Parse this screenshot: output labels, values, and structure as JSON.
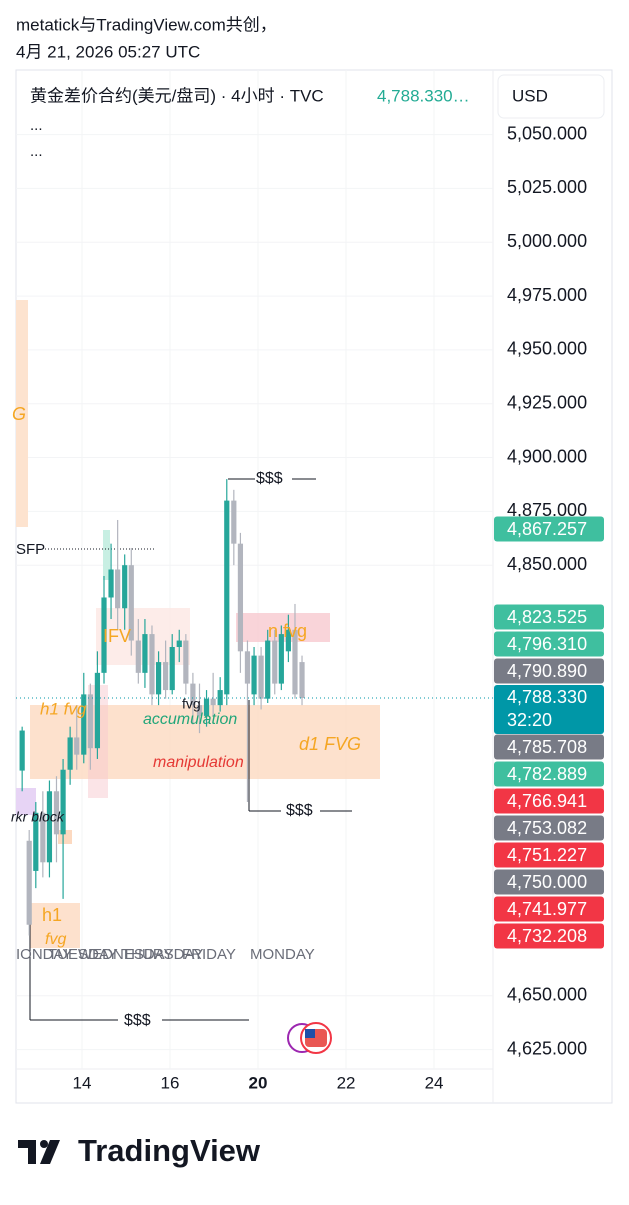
{
  "header": {
    "line1": "metatick与TradingView.com共创，",
    "line2": "4月 21, 2026 05:27 UTC"
  },
  "chart_data": {
    "type": "candlestick",
    "title": "黄金差价合约(美元/盘司) · 4小时 · TVC",
    "legend_value": "4,788.330…",
    "legend_rows": [
      "...",
      "..."
    ],
    "currency": "USD",
    "up_color": "#26a69a",
    "down_color": "#b2b5be",
    "x": [
      12.64,
      12.8,
      12.95,
      13.11,
      13.26,
      13.42,
      13.57,
      13.73,
      13.88,
      14.04,
      14.19,
      14.35,
      14.5,
      14.66,
      14.81,
      14.97,
      15.12,
      15.28,
      15.43,
      15.59,
      15.74,
      15.9,
      16.05,
      16.21,
      16.36,
      16.52,
      16.67,
      16.83,
      16.98,
      17.14,
      17.29,
      17.45,
      17.6,
      17.76,
      17.91,
      18.07,
      18.22,
      18.38,
      18.53,
      18.69,
      18.84,
      19.0
    ],
    "open": [
      4754.6,
      4722,
      4708,
      4735,
      4712,
      4745,
      4725,
      4755,
      4770,
      4762,
      4790,
      4765,
      4800,
      4835,
      4848,
      4830,
      4850,
      4815,
      4800,
      4818,
      4790,
      4805,
      4792,
      4812,
      4815,
      4795,
      4785,
      4780,
      4788,
      4785,
      4790,
      4880,
      4860,
      4810,
      4790,
      4808,
      4788,
      4815,
      4795,
      4810,
      4820,
      4805
    ],
    "high": [
      4775,
      4727,
      4740,
      4745,
      4750,
      4752,
      4760,
      4775,
      4785,
      4800,
      4795,
      4810,
      4845,
      4860,
      4871,
      4855,
      4858,
      4825,
      4825,
      4822,
      4810,
      4815,
      4818,
      4820,
      4818,
      4800,
      4795,
      4792,
      4800,
      4798,
      4890,
      4885,
      4865,
      4815,
      4812,
      4812,
      4820,
      4820,
      4822,
      4827,
      4832,
      4808
    ],
    "low": [
      4745,
      4678,
      4700,
      4705,
      4705,
      4712,
      4695,
      4748,
      4755,
      4758,
      4755,
      4760,
      4795,
      4825,
      4820,
      4820,
      4808,
      4795,
      4793,
      4785,
      4785,
      4788,
      4790,
      4805,
      4790,
      4776,
      4772,
      4775,
      4780,
      4782,
      4785,
      4850,
      4800,
      4740,
      4785,
      4783,
      4786,
      4790,
      4792,
      4805,
      4788,
      4785
    ],
    "close": [
      4773.2,
      4683,
      4735,
      4712,
      4745,
      4725,
      4755,
      4770,
      4762,
      4790,
      4765,
      4800,
      4835,
      4848,
      4830,
      4850,
      4815,
      4800,
      4818,
      4790,
      4805,
      4792,
      4812,
      4815,
      4795,
      4785,
      4780,
      4788,
      4785,
      4792,
      4880,
      4860,
      4810,
      4795,
      4808,
      4788,
      4815,
      4795,
      4818,
      4820,
      4790,
      4788.33
    ],
    "xlim": [
      12.5,
      23.34
    ],
    "xticks": [
      14,
      16,
      {
        "value": 18,
        "label": "20"
      },
      {
        "value": 20,
        "label": "22"
      },
      {
        "value": 22,
        "label": "24"
      }
    ],
    "ylim": [
      4616,
      5080
    ],
    "yticks": [
      {
        "value": 5050,
        "label": "5,050.000"
      },
      {
        "value": 5025,
        "label": "5,025.000"
      },
      {
        "value": 5000,
        "label": "5,000.000"
      },
      {
        "value": 4975,
        "label": "4,975.000"
      },
      {
        "value": 4950,
        "label": "4,950.000"
      },
      {
        "value": 4925,
        "label": "4,925.000"
      },
      {
        "value": 4900,
        "label": "4,900.000"
      },
      {
        "value": 4875,
        "label": "4,875.000"
      },
      {
        "value": 4850,
        "label": "4,850.000"
      },
      {
        "value": 4650,
        "label": "4,650.000"
      },
      {
        "value": 4625,
        "label": "4,625.000"
      }
    ],
    "grid": true,
    "price_tags": [
      {
        "value": 4867.257,
        "label": "4,867.257",
        "color": "#3fbf9f"
      },
      {
        "value": 4823.525,
        "label": "4,823.525",
        "color": "#3fbf9f"
      },
      {
        "value": 4796.31,
        "label": "4,796.310",
        "color": "#3fbf9f"
      },
      {
        "value": 4790.89,
        "label": "4,790.890",
        "color": "#787b86"
      },
      {
        "value": 4785.708,
        "label": "4,785.708",
        "color": "#787b86"
      },
      {
        "value": 4782.889,
        "label": "4,782.889",
        "color": "#3fbf9f"
      },
      {
        "value": 4766.941,
        "label": "4,766.941",
        "color": "#f23645"
      },
      {
        "value": 4753.082,
        "label": "4,753.082",
        "color": "#787b86"
      },
      {
        "value": 4751.227,
        "label": "4,751.227",
        "color": "#f23645"
      },
      {
        "value": 4750,
        "label": "4,750.000",
        "color": "#787b86"
      },
      {
        "value": 4741.977,
        "label": "4,741.977",
        "color": "#f23645"
      },
      {
        "value": 4732.208,
        "label": "4,732.208",
        "color": "#f23645"
      }
    ],
    "last_price": {
      "value": 4788.33,
      "label": "4,788.330",
      "countdown": "32:20",
      "color": "#0097a7"
    },
    "annotations": [
      {
        "text": "$$$",
        "color": "#131722"
      },
      {
        "text": "$$$",
        "color": "#131722"
      },
      {
        "text": "$$$",
        "color": "#131722"
      },
      {
        "text": "SFP",
        "color": "#131722"
      },
      {
        "text": "G",
        "color": "#f5a623"
      },
      {
        "text": "IFV",
        "color": "#f5a623"
      },
      {
        "text": "n fvg",
        "color": "#f5a623"
      },
      {
        "text": "h1 fvg",
        "color": "#f5a623"
      },
      {
        "text": "fvg",
        "color": "#131722"
      },
      {
        "text": "accumulation",
        "color": "#22a67a"
      },
      {
        "text": "d1 FVG",
        "color": "#f5a623"
      },
      {
        "text": "manipulation",
        "color": "#e53935"
      },
      {
        "text": "rkr block",
        "color": "#131722"
      },
      {
        "text": "h1",
        "color": "#f5a623"
      },
      {
        "text": "fvg",
        "color": "#f5a623"
      },
      {
        "text": "IONDAY",
        "color": "#6a6d78"
      },
      {
        "text": "TUESDAY",
        "color": "#6a6d78"
      },
      {
        "text": "WEDNESDAY",
        "color": "#6a6d78"
      },
      {
        "text": "THURSDAY",
        "color": "#6a6d78"
      },
      {
        "text": "FRIDAY",
        "color": "#6a6d78"
      },
      {
        "text": "MONDAY",
        "color": "#6a6d78"
      }
    ]
  },
  "footer": {
    "brand": "TradingView"
  }
}
